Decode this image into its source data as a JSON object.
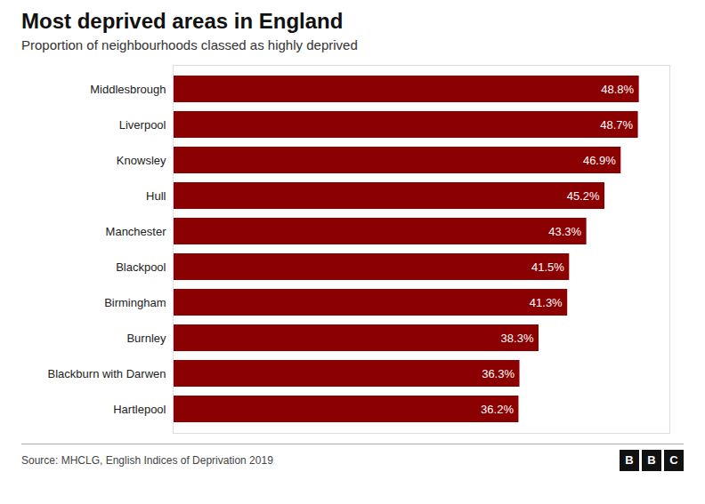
{
  "chart_data": {
    "type": "bar",
    "orientation": "horizontal",
    "title": "Most deprived areas in England",
    "subtitle": "Proportion of neighbourhoods classed as highly deprived",
    "source": "Source: MHCLG, English Indices of Deprivation 2019",
    "annotations": [
      "BBC"
    ],
    "categories": [
      "Hartlepool",
      "Blackburn with Darwen",
      "Burnley",
      "Birmingham",
      "Blackpool",
      "Manchester",
      "Hull",
      "Knowsley",
      "Liverpool",
      "Middlesbrough"
    ],
    "values": [
      36.2,
      36.3,
      38.3,
      41.3,
      41.5,
      43.3,
      45.2,
      46.9,
      48.7,
      48.8
    ],
    "value_labels": [
      "36.2%",
      "36.3%",
      "38.3%",
      "41.3%",
      "41.5%",
      "43.3%",
      "45.2%",
      "46.9%",
      "48.7%",
      "48.8%"
    ],
    "data_labels": true,
    "color": "#8B0000",
    "xlim": [
      0,
      52
    ],
    "tick_labels": "y",
    "grid": false
  }
}
